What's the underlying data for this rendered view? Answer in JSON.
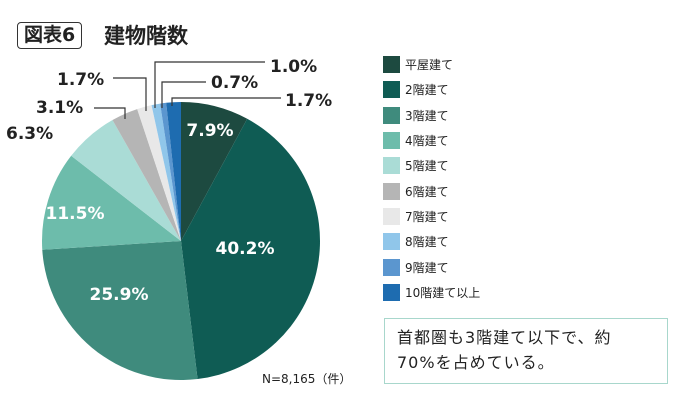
{
  "header": {
    "figure_label": "図表6",
    "title": "建物階数"
  },
  "chart_data": {
    "type": "pie",
    "title": "建物階数",
    "start": "12 o'clock, clockwise",
    "categories": [
      "平屋建て",
      "2階建て",
      "3階建て",
      "4階建て",
      "5階建て",
      "6階建て",
      "7階建て",
      "8階建て",
      "9階建て",
      "10階建て以上"
    ],
    "values": [
      7.9,
      40.2,
      25.9,
      11.5,
      6.3,
      3.1,
      1.7,
      1.0,
      0.7,
      1.7
    ],
    "labels": [
      "7.9%",
      "40.2%",
      "25.9%",
      "11.5%",
      "6.3%",
      "3.1%",
      "1.7%",
      "1.0%",
      "0.7%",
      "1.7%"
    ],
    "colors": [
      "#1d4a40",
      "#0f5c54",
      "#3f8b7d",
      "#6dbcab",
      "#aadcd6",
      "#b5b5b5",
      "#e8e8e8",
      "#90c6ea",
      "#5b96cf",
      "#1e6cb0"
    ],
    "legend_position": "right",
    "sample_note": "N=8,165（件）"
  },
  "note": {
    "line1": "首都圏も3階建て以下で、約",
    "line2": "70%を占めている。"
  }
}
